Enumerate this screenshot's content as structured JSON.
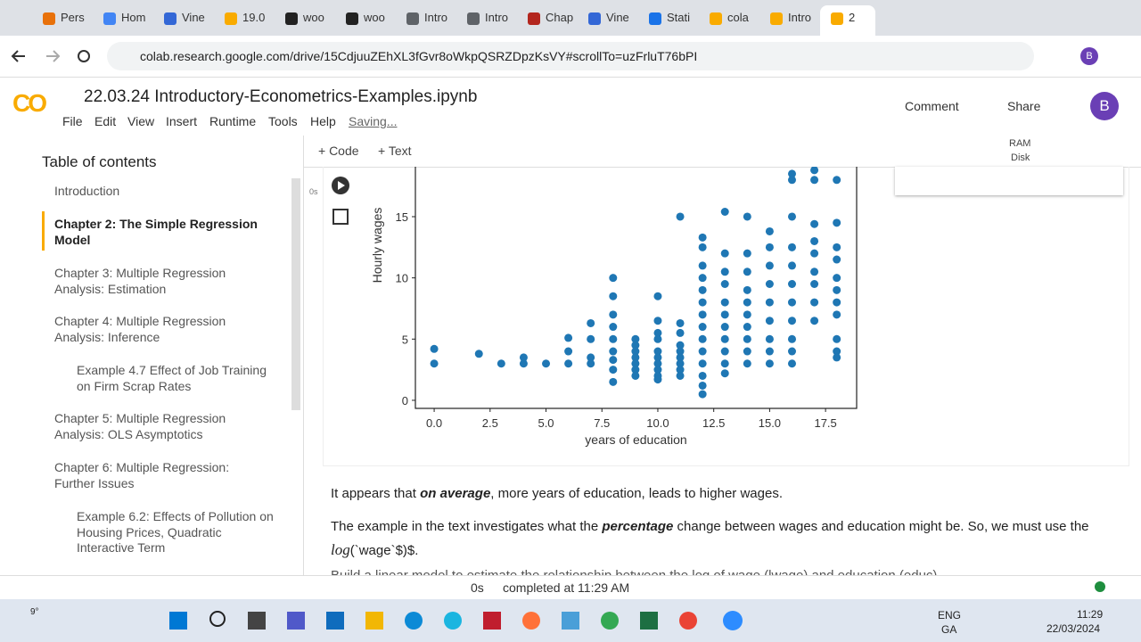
{
  "browser": {
    "tabs": [
      "Pers",
      "Hom",
      "Vine",
      "19.0",
      "woo",
      "woo",
      "Intro",
      "Intro",
      "Chap",
      "Vine",
      "Stati",
      "cola",
      "Intro",
      "2"
    ],
    "url": "colab.research.google.com/drive/15CdjuuZEhXL3fGvr8oWkpQSRZDpzKsVY#scrollTo=uzFrluT76bPI",
    "profile": "B"
  },
  "colab": {
    "logo": "CO",
    "notebook_title": "22.03.24 Introductory-Econometrics-Examples.ipynb",
    "menu": [
      "File",
      "Edit",
      "View",
      "Insert",
      "Runtime",
      "Tools",
      "Help",
      "Saving..."
    ],
    "comment": "Comment",
    "share": "Share",
    "avatar": "B",
    "add_code": "+ Code",
    "add_text": "+ Text",
    "ram": "RAM",
    "disk": "Disk"
  },
  "toc": {
    "title": "Table of contents",
    "items": [
      {
        "text": "Introduction",
        "level": 1,
        "active": false
      },
      {
        "text": "Chapter 2: The Simple Regression Model",
        "level": 1,
        "active": true
      },
      {
        "text": "Chapter 3: Multiple Regression Analysis: Estimation",
        "level": 1,
        "active": false
      },
      {
        "text": "Chapter 4: Multiple Regression Analysis: Inference",
        "level": 1,
        "active": false
      },
      {
        "text": "Example 4.7 Effect of Job Training on Firm Scrap Rates",
        "level": 2,
        "active": false
      },
      {
        "text": "Chapter 5: Multiple Regression Analysis: OLS Asymptotics",
        "level": 1,
        "active": false
      },
      {
        "text": "Chapter 6: Multiple Regression: Further Issues",
        "level": 1,
        "active": false
      },
      {
        "text": "Example 6.2: Effects of Pollution on Housing Prices, Quadratic Interactive Term",
        "level": 2,
        "active": false
      }
    ]
  },
  "cell": {
    "exec_time": "0s"
  },
  "chart_data": {
    "type": "scatter",
    "x_label": "years of education",
    "y_label": "Hourly wages",
    "color": "#1f77b4",
    "xlim": [
      -0.84,
      18.89
    ],
    "ylim": [
      -0.66,
      25
    ],
    "xticks": [
      {
        "value": 0,
        "label": "0.0"
      },
      2.5,
      {
        "value": 5,
        "label": "5.0"
      },
      7.5,
      {
        "value": 10,
        "label": "10.0"
      },
      12.5,
      {
        "value": 15,
        "label": "15.0"
      },
      17.5
    ],
    "yticks": [
      0,
      5,
      10,
      15
    ],
    "x": [
      0,
      0,
      2,
      3,
      4,
      4,
      5,
      6,
      6,
      6,
      7,
      7,
      7,
      7,
      8,
      8,
      8,
      8,
      8,
      8,
      8,
      8,
      8,
      9,
      9,
      9,
      9,
      9,
      9,
      9,
      10,
      10,
      10,
      10,
      10,
      10,
      10,
      10,
      10,
      10,
      11,
      11,
      11,
      11,
      11,
      11,
      11,
      11,
      11,
      12,
      12,
      12,
      12,
      12,
      12,
      12,
      12,
      12,
      12,
      12,
      12,
      12,
      12,
      13,
      13,
      13,
      13,
      13,
      13,
      13,
      13,
      13,
      13,
      13,
      14,
      14,
      14,
      14,
      14,
      14,
      14,
      14,
      14,
      14,
      15,
      15,
      15,
      15,
      15,
      15,
      15,
      15,
      15,
      16,
      16,
      16,
      16,
      16,
      16,
      16,
      16,
      16,
      16,
      16,
      17,
      17,
      17,
      17,
      17,
      17,
      17,
      17,
      17,
      18,
      18,
      18,
      18,
      18,
      18,
      18,
      18,
      18,
      18,
      18
    ],
    "y": [
      4.2,
      3.0,
      3.8,
      3.0,
      3.5,
      3.0,
      3.0,
      5.1,
      4.0,
      3.0,
      6.3,
      5.0,
      3.5,
      3.0,
      10.0,
      8.5,
      7.0,
      6.0,
      5.0,
      4.0,
      3.3,
      2.5,
      1.5,
      5.0,
      4.5,
      4.0,
      3.5,
      3.0,
      2.5,
      2.0,
      8.5,
      6.5,
      5.5,
      5.0,
      4.0,
      3.5,
      3.0,
      2.5,
      2.0,
      1.7,
      15.0,
      6.3,
      5.5,
      4.5,
      4.0,
      3.5,
      3.0,
      2.5,
      2.0,
      13.3,
      12.5,
      11.0,
      10.0,
      9.0,
      8.0,
      7.0,
      6.0,
      5.0,
      4.0,
      3.0,
      2.0,
      1.2,
      0.5,
      15.4,
      12.0,
      10.5,
      9.5,
      8.0,
      7.0,
      6.0,
      5.0,
      4.0,
      3.0,
      2.2,
      15.0,
      12.0,
      10.5,
      9.0,
      8.0,
      7.0,
      6.0,
      5.0,
      4.0,
      3.0,
      13.8,
      12.5,
      11.0,
      9.5,
      8.0,
      6.5,
      5.0,
      4.0,
      3.0,
      18.5,
      18.0,
      15.0,
      12.5,
      11.0,
      9.5,
      8.0,
      6.5,
      5.0,
      4.0,
      3.0,
      18.8,
      18.0,
      14.4,
      13.0,
      12.0,
      10.5,
      9.5,
      8.0,
      6.5,
      18.0,
      14.5,
      12.5,
      11.5,
      10.0,
      9.0,
      8.0,
      7.0,
      5.0,
      4.0,
      3.5
    ]
  },
  "text_cell": {
    "p1": [
      "It appears that ",
      "on average",
      ", more years of education, leads to higher wages."
    ],
    "p2": [
      "The example in the text investigates what the ",
      "percentage",
      " change between wages and education might be. So, we must use the ",
      "log",
      "(`wage`$)$."
    ],
    "p3": "Build a linear model to estimate the relationship between the log of wage (lwage) and education (educ)"
  },
  "status": {
    "time": "0s",
    "completed": "completed at 11:29 AM"
  },
  "taskbar": {
    "weather": "9°",
    "lang": "ENG",
    "region": "GA",
    "clock": "11:29",
    "date": "22/03/2024"
  }
}
